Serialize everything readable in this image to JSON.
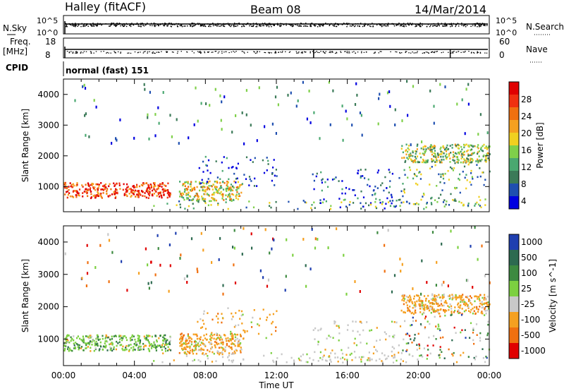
{
  "header": {
    "station": "Halley (fitACF)",
    "beam": "Beam 08",
    "date": "14/Mar/2014"
  },
  "strips": {
    "nsky_label": "N.Sky",
    "nsky_ticks": [
      "10^5",
      "10^0"
    ],
    "nsearch_label": "N.Search",
    "nsearch_ticks": [
      "10^5",
      "10^0"
    ],
    "freq_label": "Freq.",
    "freq_unit": "[MHz]",
    "freq_ticks": [
      "18",
      "8"
    ],
    "nave_label": "Nave",
    "nave_ticks": [
      "60",
      "0"
    ],
    "cpid_label": "CPID",
    "cpid_value": "normal (fast) 151"
  },
  "chart_data": [
    {
      "type": "heatmap",
      "name": "power",
      "ylabel": "Slant Range [km]",
      "xlabel": "Time UT",
      "xlim_hours": [
        0,
        24
      ],
      "ylim_km": [
        180,
        4500
      ],
      "x_ticks": [
        "00:00",
        "04:00",
        "08:00",
        "12:00",
        "16:00",
        "20:00",
        "00:00"
      ],
      "y_ticks": [
        1000,
        2000,
        3000,
        4000
      ],
      "colorbar": {
        "label": "Power [dB]",
        "ticks": [
          "28",
          "24",
          "20",
          "16",
          "12",
          "8",
          "4"
        ],
        "range": [
          0,
          30
        ],
        "colors": [
          "#0000e0",
          "#1f4fb0",
          "#3b7a58",
          "#4aa870",
          "#7fd04a",
          "#f0d020",
          "#f5a020",
          "#f07010",
          "#f03010",
          "#e00000"
        ]
      },
      "regions": [
        {
          "t": [
            0.0,
            6.0
          ],
          "r": [
            650,
            1150
          ],
          "level": 0.85
        },
        {
          "t": [
            6.5,
            10.0
          ],
          "r": [
            550,
            1200
          ],
          "level": 0.55
        },
        {
          "t": [
            7.5,
            12.0
          ],
          "r": [
            1000,
            2000
          ],
          "level": 0.15
        },
        {
          "t": [
            14.0,
            19.0
          ],
          "r": [
            300,
            1600
          ],
          "level": 0.15
        },
        {
          "t": [
            19.0,
            24.0
          ],
          "r": [
            1800,
            2400
          ],
          "level": 0.45
        },
        {
          "t": [
            19.0,
            24.0
          ],
          "r": [
            400,
            1800
          ],
          "level": 0.35
        },
        {
          "t": [
            5.0,
            24.0
          ],
          "r": [
            300,
            600
          ],
          "level": 0.35
        },
        {
          "t": [
            0.0,
            24.0
          ],
          "r": [
            2400,
            4500
          ],
          "level": 0.25
        }
      ]
    },
    {
      "type": "heatmap",
      "name": "velocity",
      "ylabel": "Slant Range [km]",
      "xlabel": "Time UT",
      "xlim_hours": [
        0,
        24
      ],
      "ylim_km": [
        180,
        4500
      ],
      "x_ticks": [
        "00:00",
        "04:00",
        "08:00",
        "12:00",
        "16:00",
        "20:00",
        "00:00"
      ],
      "y_ticks": [
        1000,
        2000,
        3000,
        4000
      ],
      "colorbar": {
        "label": "Velocity [m s^-1]",
        "ticks": [
          "1000",
          "500",
          "100",
          "25",
          "-25",
          "-100",
          "-500",
          "-1000"
        ],
        "colors": [
          "#1f3fb0",
          "#2d6a50",
          "#3d8a40",
          "#7cd040",
          "#c8c8c8",
          "#f5a020",
          "#f07010",
          "#e00000"
        ]
      },
      "regions": [
        {
          "t": [
            0.0,
            6.0
          ],
          "r": [
            650,
            1150
          ],
          "kind": "green"
        },
        {
          "t": [
            6.5,
            10.0
          ],
          "r": [
            550,
            1200
          ],
          "kind": "orange"
        },
        {
          "t": [
            7.5,
            12.0
          ],
          "r": [
            1000,
            2000
          ],
          "kind": "orange"
        },
        {
          "t": [
            14.0,
            19.0
          ],
          "r": [
            300,
            1600
          ],
          "kind": "gray"
        },
        {
          "t": [
            19.0,
            24.0
          ],
          "r": [
            1800,
            2400
          ],
          "kind": "orange"
        },
        {
          "t": [
            19.0,
            24.0
          ],
          "r": [
            400,
            1800
          ],
          "kind": "mixed"
        },
        {
          "t": [
            5.0,
            24.0
          ],
          "r": [
            300,
            600
          ],
          "kind": "gray"
        },
        {
          "t": [
            0.0,
            24.0
          ],
          "r": [
            2400,
            4500
          ],
          "kind": "mixed"
        }
      ]
    }
  ]
}
